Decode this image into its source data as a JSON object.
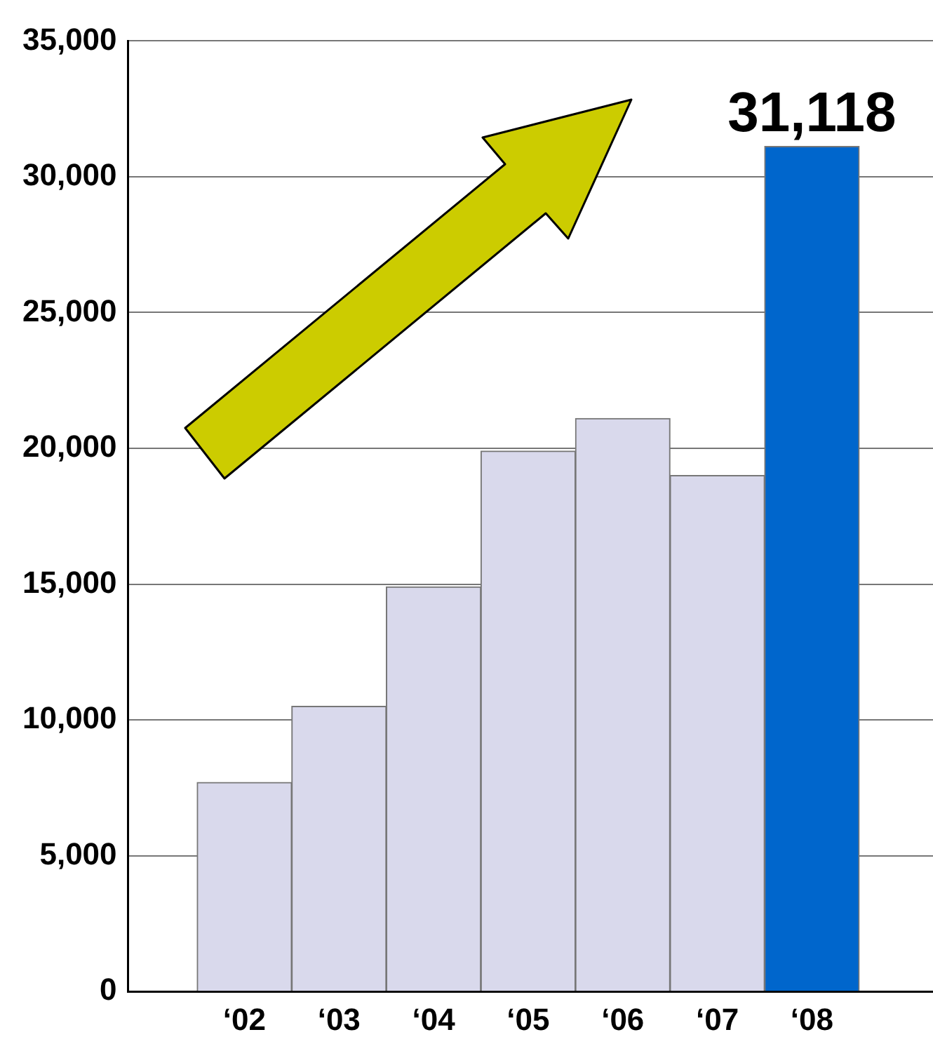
{
  "chart_data": {
    "type": "bar",
    "categories": [
      "‘02",
      "‘03",
      "‘04",
      "‘05",
      "‘06",
      "‘07",
      "‘08"
    ],
    "values": [
      7700,
      10500,
      14900,
      19900,
      21100,
      19000,
      31118
    ],
    "colors": [
      "#d9d9ec",
      "#d9d9ec",
      "#d9d9ec",
      "#d9d9ec",
      "#d9d9ec",
      "#d9d9ec",
      "#0066cc"
    ],
    "value_labels": [
      null,
      null,
      null,
      null,
      null,
      null,
      "31,118"
    ],
    "ylim": [
      0,
      35000
    ],
    "yticks": [
      {
        "value": 0,
        "label": "0"
      },
      {
        "value": 5000,
        "label": "5,000"
      },
      {
        "value": 10000,
        "label": "10,000"
      },
      {
        "value": 15000,
        "label": "15,000"
      },
      {
        "value": 20000,
        "label": "20,000"
      },
      {
        "value": 25000,
        "label": "25,000"
      },
      {
        "value": 30000,
        "label": "30,000"
      },
      {
        "value": 35000,
        "label": "35,000"
      }
    ],
    "grid": "y",
    "legend": false
  }
}
